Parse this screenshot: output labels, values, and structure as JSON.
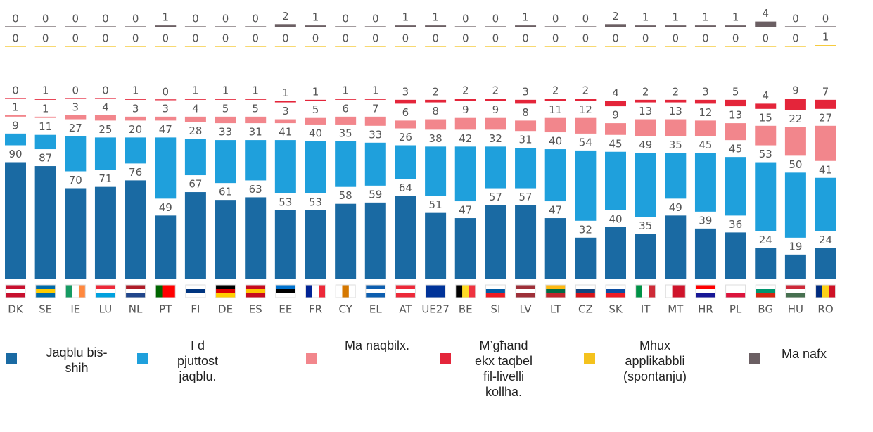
{
  "chart_data": {
    "type": "stacked_bar",
    "categories": [
      "DK",
      "SE",
      "IE",
      "LU",
      "NL",
      "PT",
      "FI",
      "DE",
      "ES",
      "EE",
      "FR",
      "CY",
      "EL",
      "AT",
      "UE27",
      "BE",
      "SI",
      "LV",
      "LT",
      "CZ",
      "SK",
      "IT",
      "MT",
      "HR",
      "PL",
      "BG",
      "HU",
      "RO"
    ],
    "series": [
      {
        "name": "Jaqblu bis-sħiħ",
        "color": "#1a6aa3",
        "values": [
          90,
          87,
          70,
          71,
          76,
          49,
          67,
          61,
          63,
          53,
          53,
          58,
          59,
          64,
          51,
          47,
          57,
          57,
          47,
          32,
          40,
          35,
          49,
          39,
          36,
          24,
          19,
          24
        ]
      },
      {
        "name": "I d pjuttost jaqblu.",
        "color": "#1fa0dc",
        "values": [
          9,
          11,
          27,
          25,
          20,
          47,
          28,
          33,
          31,
          41,
          40,
          35,
          33,
          26,
          38,
          42,
          32,
          31,
          40,
          54,
          45,
          49,
          35,
          45,
          45,
          53,
          50,
          41
        ]
      },
      {
        "name": "Ma naqbilx.",
        "color": "#f2868c",
        "values": [
          1,
          1,
          3,
          4,
          3,
          3,
          4,
          5,
          5,
          3,
          5,
          6,
          7,
          6,
          8,
          9,
          9,
          8,
          11,
          12,
          9,
          13,
          13,
          12,
          13,
          15,
          22,
          27
        ]
      },
      {
        "name": "M’għand ekx taqbel fil-livelli kollha.",
        "color": "#e4253a",
        "values": [
          0,
          1,
          0,
          0,
          1,
          0,
          1,
          1,
          1,
          1,
          1,
          1,
          1,
          3,
          2,
          2,
          2,
          3,
          2,
          2,
          4,
          2,
          2,
          3,
          5,
          4,
          9,
          7
        ]
      },
      {
        "name": "Mhux applikabbli (spontanju)",
        "color": "#f4c21d",
        "values": [
          0,
          0,
          0,
          0,
          0,
          0,
          0,
          0,
          0,
          0,
          0,
          0,
          0,
          0,
          0,
          0,
          0,
          0,
          0,
          0,
          0,
          0,
          0,
          0,
          0,
          0,
          0,
          1
        ]
      },
      {
        "name": "Ma nafx",
        "color": "#6b5f63",
        "values": [
          0,
          0,
          0,
          0,
          0,
          1,
          0,
          0,
          0,
          2,
          1,
          0,
          0,
          1,
          1,
          0,
          0,
          1,
          0,
          0,
          2,
          1,
          1,
          1,
          1,
          4,
          0,
          0
        ]
      }
    ]
  }
}
